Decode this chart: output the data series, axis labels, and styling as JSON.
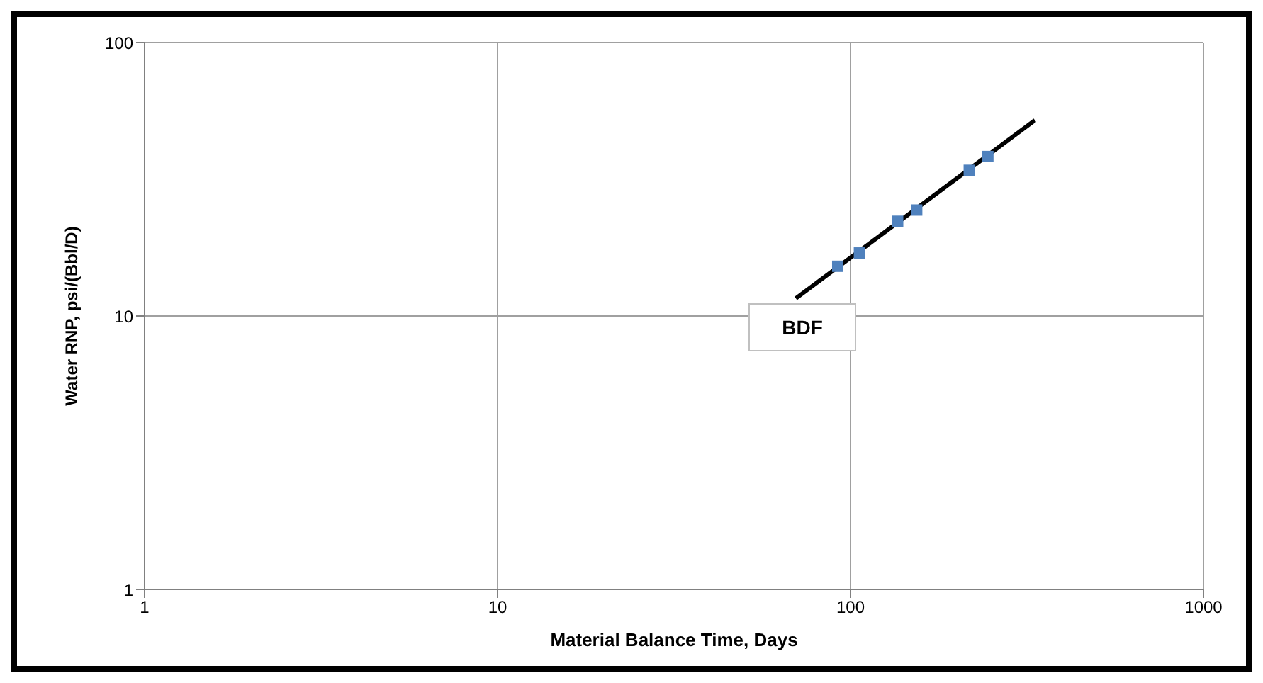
{
  "chart_data": {
    "type": "scatter",
    "xlabel": "Material Balance Time, Days",
    "ylabel": "Water RNP, psi/(Bbl/D)",
    "log": "xy",
    "grid": true,
    "legend": false,
    "xlim": [
      1,
      1000
    ],
    "xticks": [
      1,
      10,
      100,
      1000
    ],
    "ylim": [
      1,
      100
    ],
    "yticks": [
      1,
      10,
      100
    ],
    "series": [
      {
        "color": "#4f81bd",
        "marker": "square",
        "x": [
          92,
          106,
          136,
          154,
          217,
          245
        ],
        "values": [
          15.2,
          17.0,
          22.2,
          24.4,
          34.1,
          38.3
        ]
      },
      {
        "type": "line",
        "color": "#000000",
        "marker": "none",
        "x": [
          70,
          333
        ],
        "values": [
          11.6,
          52
        ]
      }
    ],
    "annotations": [
      "BDF"
    ]
  }
}
